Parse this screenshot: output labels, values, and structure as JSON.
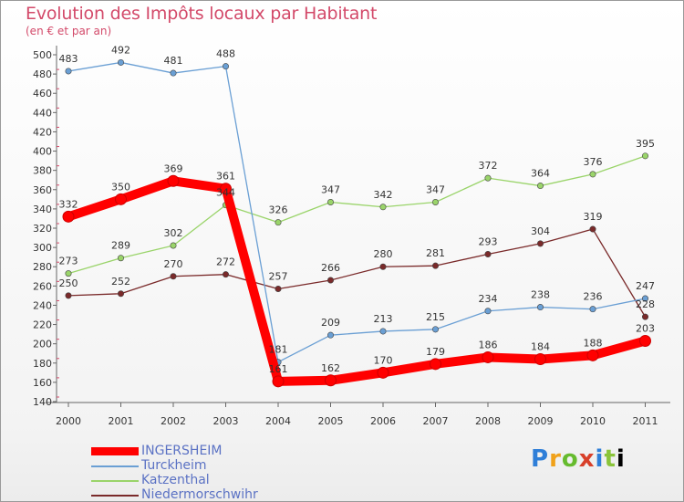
{
  "header": {
    "title": "Evolution des Impôts locaux par Habitant",
    "subtitle": "(en € et par an)"
  },
  "logo": {
    "text": "Proxiti",
    "letters": [
      "P",
      "r",
      "o",
      "x",
      "i",
      "t",
      "i"
    ]
  },
  "chart_data": {
    "type": "line",
    "title": "Evolution des Impôts locaux par Habitant",
    "subtitle": "(en € et par an)",
    "x": [
      "2000",
      "2001",
      "2002",
      "2003",
      "2004",
      "2005",
      "2006",
      "2007",
      "2008",
      "2009",
      "2010",
      "2011"
    ],
    "ylim": [
      140,
      500
    ],
    "yticks": [
      140,
      160,
      180,
      200,
      220,
      240,
      260,
      280,
      300,
      320,
      340,
      360,
      380,
      400,
      420,
      440,
      460,
      480,
      500
    ],
    "grid": false,
    "legend_position": "bottom-left",
    "series": [
      {
        "name": "INGERSHEIM",
        "color": "#ff0000",
        "values": [
          332,
          350,
          369,
          361,
          161,
          162,
          170,
          179,
          186,
          184,
          188,
          203
        ]
      },
      {
        "name": "Turckheim",
        "color": "#6a9fd4",
        "values": [
          483,
          492,
          481,
          488,
          181,
          209,
          213,
          215,
          234,
          238,
          236,
          247
        ]
      },
      {
        "name": "Katzenthal",
        "color": "#9ad46a",
        "values": [
          273,
          289,
          302,
          344,
          326,
          347,
          342,
          347,
          372,
          364,
          376,
          395
        ]
      },
      {
        "name": "Niedermorschwihr",
        "color": "#7a2a2a",
        "values": [
          250,
          252,
          270,
          272,
          257,
          266,
          280,
          281,
          293,
          304,
          319,
          228
        ]
      }
    ]
  }
}
